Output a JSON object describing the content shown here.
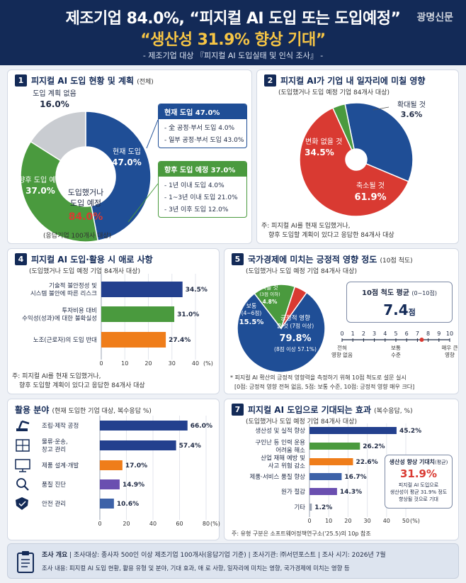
{
  "header": {
    "title_line1": "제조기업 84.0%, “피지컬 AI 도입 또는 도입예정”",
    "title_line2": "“생산성 31.9% 향상 기대”",
    "subtitle": "- 제조기업 대상 『피지컬 AI 도입실태 및 인식 조사』 -",
    "watermark": "광명신문"
  },
  "s1": {
    "num": "1",
    "title": "피지컬 AI 도입 현황 및 계획",
    "note": "(전체)",
    "center_line1": "도입했거나",
    "center_line2": "도입 예정",
    "center_value": "84.0%",
    "slice_labels": [
      {
        "label": "현재 도입",
        "value": "47.0%"
      },
      {
        "label": "향후 도입 예정",
        "value": "37.0%"
      },
      {
        "label": "도입 계획 없음",
        "value": "16.0%"
      }
    ],
    "box_current": {
      "header": "현재 도입  47.0%",
      "rows": [
        "- 全 공정·부서 도입 4.0%",
        "- 일부 공정·부서 도입 43.0%"
      ]
    },
    "box_planned": {
      "header": "향후 도입 예정  37.0%",
      "rows": [
        "- 1년 이내 도입      4.0%",
        "- 1~3년 이내 도입 21.0%",
        "- 3년 이후 도입     12.0%"
      ]
    },
    "footnote": "(응답기업 100개사 대상)"
  },
  "s2": {
    "num": "2",
    "title": "피지컬 AI가 기업 내 일자리에 미칠 영향",
    "sub": "(도입했거나 도입 예정 기업 84개사 대상)",
    "labels": [
      {
        "label": "큰 변화 없을 것",
        "value": "34.5%"
      },
      {
        "label": "축소될 것",
        "value": "61.9%"
      },
      {
        "label": "확대될 것",
        "value": "3.6%"
      }
    ],
    "note1": "주: 피지컬 AI를 현재 도입했거나,",
    "note2": "향후 도입할 계획이 있다고 응답한 84개사 대상"
  },
  "s4": {
    "num": "4",
    "title": "피지컬 AI 도입·활용 시 애로 사항",
    "sub": "(도입했거나 도입 예정 기업 84개사 대상)",
    "cat_lines": [
      [
        "기술적 불안정성 및",
        "시스템 불안에 따른 리스크"
      ],
      [
        "투자비용 대비",
        "수익성(성과)에 대한 불확실성"
      ],
      [
        "노조(근로자)의 도입 반대"
      ]
    ],
    "value_labels": [
      "34.5%",
      "31.0%",
      "27.4%"
    ],
    "ticks": [
      "0",
      "10",
      "20",
      "30",
      "40"
    ],
    "unit": "(%)",
    "note1": "주: 피지컬 AI를 현재 도입했거나,",
    "note2": "향후 도입할 계획이 있다고 응답한 84개사 대상"
  },
  "s5": {
    "num": "5",
    "title": "국가경제에 미치는 긍정적 영향 정도",
    "note": "(10점 척도)",
    "sub": "(도입했거나 도입 예정 기업 84개사 대상)",
    "pie_text": {
      "pos1": "긍정적 영향",
      "pos2": "줄 것 (7점 이상)",
      "pos_val": "79.8%",
      "pos_sub": "(8점 이상 57.1%)",
      "mid1": "보통",
      "mid2": "(4~6점)",
      "mid_val": "15.5%",
      "neg1": "작을 것",
      "neg2": "(3점 이하)",
      "neg_val": "4.8%"
    },
    "avg_title": "10점 척도 평균",
    "avg_paren": "(0~10점)",
    "avg_value": "7.4",
    "avg_unit": "점",
    "scale_ticks": [
      "0",
      "1",
      "2",
      "3",
      "4",
      "5",
      "6",
      "7",
      "8",
      "9",
      "10"
    ],
    "scale_low": [
      "전혀",
      "영향 없음"
    ],
    "scale_mid": [
      "보통",
      "수준"
    ],
    "scale_high": [
      "매우 큰",
      "영향"
    ],
    "note1": "* 피지컬 AI 확산의 긍정적 영향력을 측정하기 위해 10점 척도로 설문 실시",
    "note2": "[0점: 긍정적 영향 전혀 없음, 5점: 보통 수준, 10점: 긍정적 영향 매우 크다]"
  },
  "s6": {
    "title": "활용 분야",
    "note": "(현재 도입한 기업 대상, 복수응답 %)",
    "icons": [
      "robot-arm-icon",
      "warehouse-icon",
      "monitor-design-icon",
      "magnifier-icon",
      "shield-icon"
    ],
    "value_labels": [
      "66.0%",
      "57.4%",
      "17.0%",
      "14.9%",
      "10.6%"
    ],
    "ticks": [
      "0",
      "20",
      "40",
      "60",
      "80"
    ],
    "unit": "(%)"
  },
  "s7": {
    "num": "7",
    "title": "피지컬 AI 도입으로 기대되는 효과",
    "note": "(복수응답, %)",
    "sub": "(도입했거나 도입 예정 기업 84개사 대상)",
    "cat_lines": [
      [
        "생산성 및 실적 향상"
      ],
      [
        "구인난 등 인력 운용",
        "어려움 해소"
      ],
      [
        "산업 재해 예방 및",
        "사고 위험 감소"
      ],
      [
        "제품·서비스 품질 향상"
      ],
      [
        "원가 절감"
      ],
      [
        "기타"
      ]
    ],
    "value_labels": [
      "45.2%",
      "26.2%",
      "22.6%",
      "16.7%",
      "14.3%",
      "1.2%"
    ],
    "ticks": [
      "0",
      "10",
      "20",
      "30",
      "40",
      "50"
    ],
    "unit": "(%)",
    "callout_title": "생산성 향상 기대치",
    "callout_paren": "(평균)",
    "callout_value": "31.9%",
    "callout_l1": "피지컬 AI 도입으로",
    "callout_l2": "생산성이 평균 31.9% 정도",
    "callout_l3": "향상될 것으로 기대",
    "source": "주: 유형 구분은 소프트웨어정책연구소('25.5)의 10p 참조"
  },
  "footer": {
    "line1_a": "조사 개요",
    "line1_b": "조사대상: 종사자 500인 이상 제조기업 100개사(응답기업 기준)",
    "line1_c": "조사기관: ㈜서던포스트",
    "line1_d": "조사 시기: 2026년 7월",
    "line2": "조사 내용: 피지컬 AI 도입 현황, 활용 유형 및 분야, 기대 효과, 애 로 사항, 일자리에 미치는 영향, 국가경제에 미치는 영향 등"
  },
  "colors": {
    "navy": "#1f4e96",
    "green": "#4a9a3e",
    "gray": "#c9ccd1",
    "red": "#d93a32",
    "orange": "#ef7d1a",
    "purple": "#6a4fb0",
    "blue_bar": "#23408e",
    "dark": "#132a57"
  },
  "chart_data": [
    {
      "type": "pie",
      "categories": [
        "현재 도입",
        "향후 도입 예정",
        "도입 계획 없음"
      ],
      "values": [
        47.0,
        37.0,
        16.0
      ],
      "inner_total": 84.0
    },
    {
      "type": "pie",
      "categories": [
        "큰 변화 없을 것",
        "축소될 것",
        "확대될 것"
      ],
      "values": [
        34.5,
        61.9,
        3.6
      ]
    },
    {
      "type": "bar",
      "orientation": "horizontal",
      "categories": [
        "기술적 불안정성 및 시스템 불안에 따른 리스크",
        "투자비용 대비 수익성(성과)에 대한 불확실성",
        "노조(근로자)의 도입 반대"
      ],
      "values": [
        34.5,
        31.0,
        27.4
      ],
      "xlim": [
        0,
        40
      ],
      "xlabel": "(%)"
    },
    {
      "type": "pie",
      "categories": [
        "긍정적 영향 줄 것 (7점 이상)",
        "보통 (4~6점)",
        "작을 것 (3점 이하)"
      ],
      "values": [
        79.8,
        15.5,
        4.8
      ],
      "scale_average": 7.4,
      "scale_range": [
        0,
        10
      ]
    },
    {
      "type": "bar",
      "orientation": "horizontal",
      "categories": [
        "조립·제작 공정",
        "물류·운송, 창고 관리",
        "제품 설계·개발",
        "품질 진단",
        "안전 관리"
      ],
      "values": [
        66.0,
        57.4,
        17.0,
        14.9,
        10.6
      ],
      "xlim": [
        0,
        80
      ],
      "xlabel": "(%)"
    },
    {
      "type": "bar",
      "orientation": "horizontal",
      "categories": [
        "생산성 및 실적 향상",
        "구인난 등 인력 운용 어려움 해소",
        "산업 재해 예방 및 사고 위험 감소",
        "제품·서비스 품질 향상",
        "원가 절감",
        "기타"
      ],
      "values": [
        45.2,
        26.2,
        22.6,
        16.7,
        14.3,
        1.2
      ],
      "xlim": [
        0,
        50
      ],
      "xlabel": "(%)",
      "average": 31.9
    }
  ]
}
